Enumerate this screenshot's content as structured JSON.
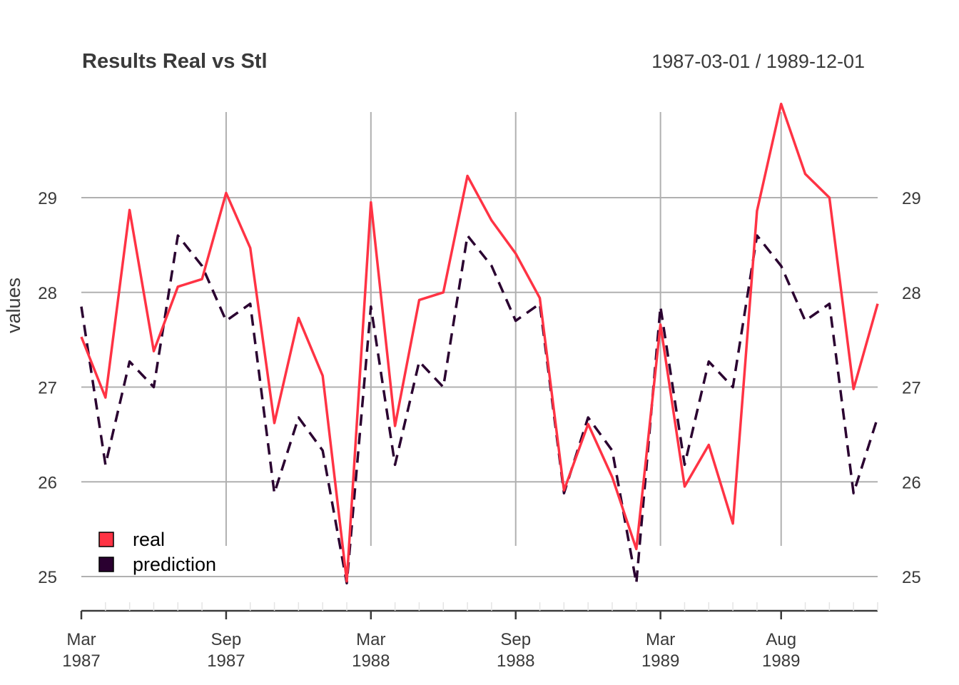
{
  "chart_data": {
    "type": "line",
    "title": "Results Real vs Stl",
    "date_range": "1987-03-01 / 1989-12-01",
    "ylabel": "values",
    "xlabel": "",
    "ylim": [
      24.7,
      30.0
    ],
    "yticks": [
      "25",
      "26",
      "27",
      "28",
      "29"
    ],
    "x": [
      "1987-03",
      "1987-04",
      "1987-05",
      "1987-06",
      "1987-07",
      "1987-08",
      "1987-09",
      "1987-10",
      "1987-11",
      "1987-12",
      "1988-01",
      "1988-02",
      "1988-03",
      "1988-04",
      "1988-05",
      "1988-06",
      "1988-07",
      "1988-08",
      "1988-09",
      "1988-10",
      "1988-11",
      "1988-12",
      "1989-01",
      "1989-02",
      "1989-03",
      "1989-04",
      "1989-05",
      "1989-06",
      "1989-07",
      "1989-08",
      "1989-09",
      "1989-10",
      "1989-11",
      "1989-12"
    ],
    "xticks": [
      {
        "month": "Mar",
        "year": "1987",
        "index": 0
      },
      {
        "month": "Sep",
        "year": "1987",
        "index": 6
      },
      {
        "month": "Mar",
        "year": "1988",
        "index": 12
      },
      {
        "month": "Sep",
        "year": "1988",
        "index": 18
      },
      {
        "month": "Mar",
        "year": "1989",
        "index": 24
      },
      {
        "month": "Aug",
        "year": "1989",
        "index": 29
      }
    ],
    "series": [
      {
        "name": "real",
        "color": "#ff3344",
        "dash": "solid",
        "values": [
          27.53,
          26.89,
          28.87,
          27.38,
          28.06,
          28.14,
          29.05,
          28.47,
          26.62,
          27.73,
          27.12,
          24.95,
          28.95,
          26.59,
          27.92,
          28.0,
          29.23,
          28.76,
          28.41,
          27.94,
          25.91,
          26.61,
          26.05,
          25.29,
          27.66,
          25.95,
          26.39,
          25.56,
          28.86,
          29.99,
          29.25,
          29.0,
          26.98,
          27.88
        ]
      },
      {
        "name": "prediction",
        "color": "#2a0030",
        "dash": "dashed",
        "values": [
          27.85,
          26.18,
          27.27,
          27.0,
          28.6,
          28.28,
          27.7,
          27.88,
          25.88,
          26.68,
          26.33,
          24.93,
          27.85,
          26.18,
          27.27,
          27.0,
          28.6,
          28.28,
          27.7,
          27.88,
          25.88,
          26.68,
          26.33,
          24.93,
          27.85,
          26.18,
          27.27,
          27.0,
          28.6,
          28.28,
          27.7,
          27.88,
          25.88,
          26.68
        ]
      }
    ],
    "legend_position": "bottom-left",
    "grid": true
  }
}
